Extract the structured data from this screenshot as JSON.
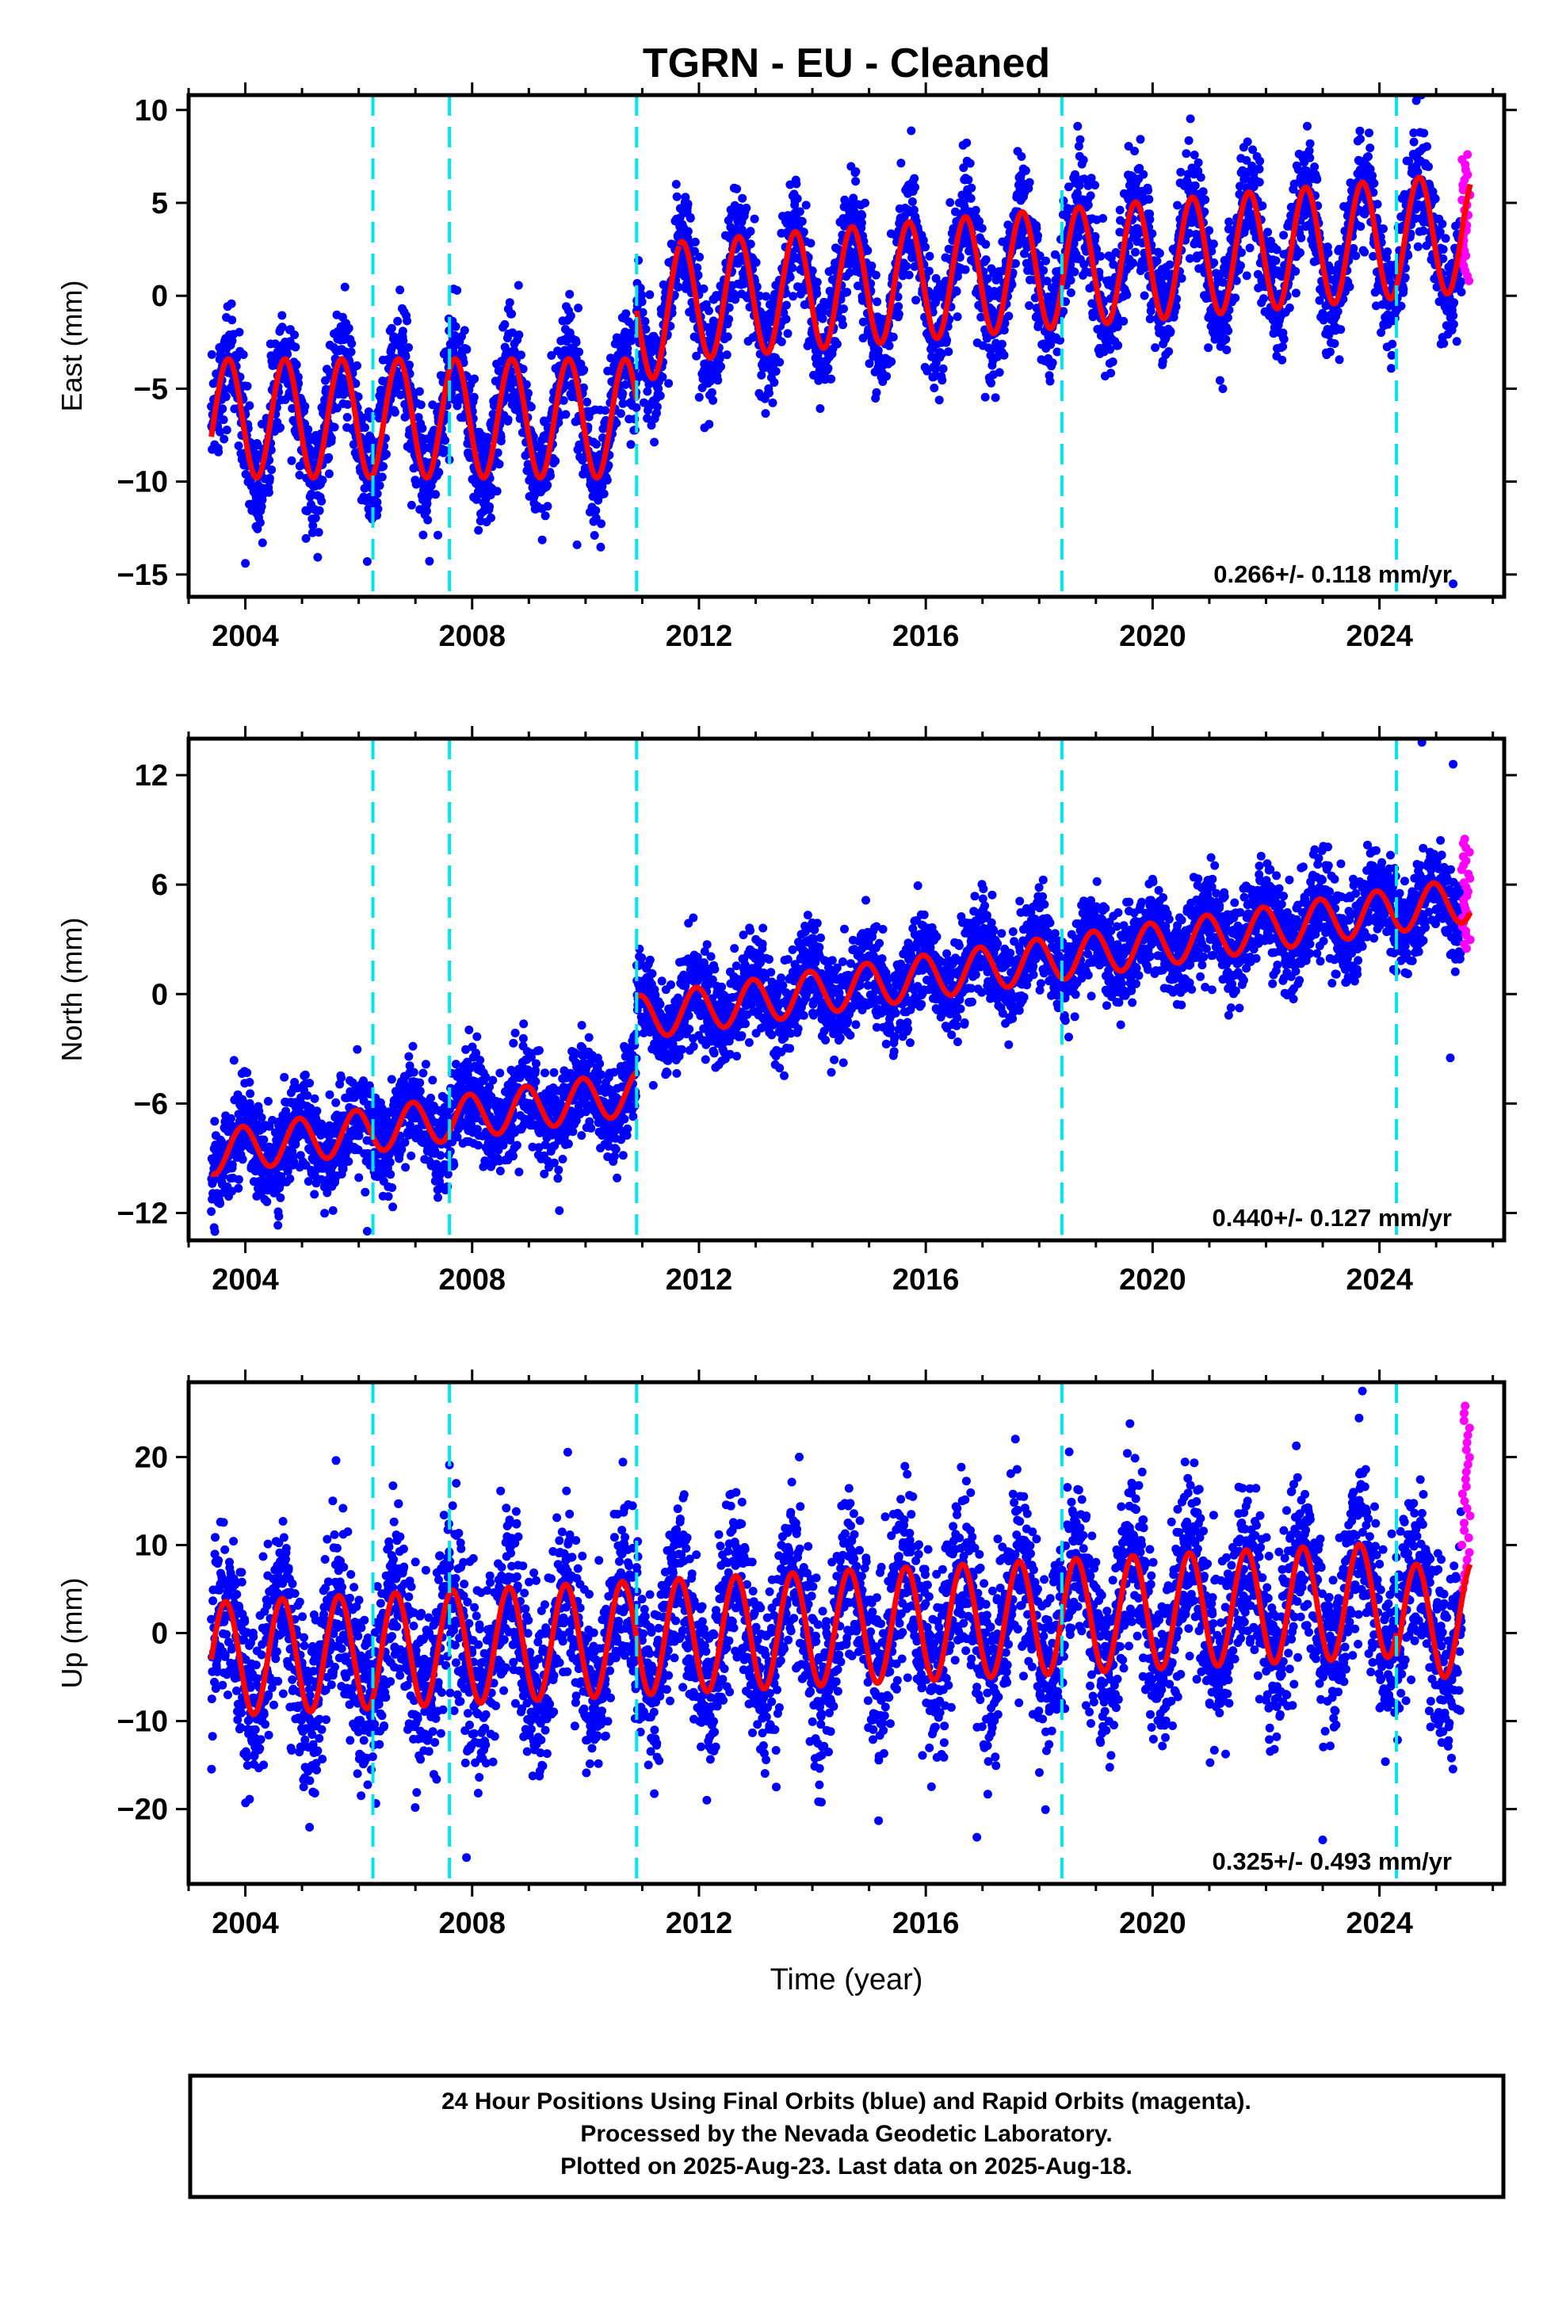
{
  "colors": {
    "final_points": "#0000ff",
    "rapid_points": "#ff00ff",
    "model": "#ff0000",
    "breaks": "#00e5ee",
    "frame": "#000000"
  },
  "chart_data": [
    {
      "type": "scatter",
      "title": "TGRN  - EU - Cleaned",
      "ylabel": "East (mm)",
      "xlabel": "",
      "xlim": [
        2003.0,
        2026.2
      ],
      "ylim": [
        -16.2,
        10.8
      ],
      "yticks": [
        10,
        5,
        0,
        -5,
        -10,
        -15
      ],
      "xticks": [
        2004,
        2008,
        2012,
        2016,
        2020,
        2024
      ],
      "rate_text": "0.266+/- 0.118 mm/yr",
      "breaks": [
        2006.25,
        2007.6,
        2010.9,
        2018.4,
        2024.3
      ],
      "model": {
        "amp": 3.2,
        "phase": 0.55,
        "segments": [
          [
            2003.4,
            2010.9,
            -6.6,
            0.0
          ],
          [
            2010.9,
            2011.65,
            -1.8,
            1.9
          ],
          [
            2011.65,
            2025.6,
            -0.3,
            0.266
          ]
        ]
      },
      "scatter_sigma": 1.5,
      "rapid": {
        "x0": 2025.45,
        "x1": 2025.6,
        "ymin": 0.8,
        "ymax": 7.6
      },
      "outliers": [
        [
          2004.0,
          -14.4
        ],
        [
          2006.15,
          -14.3
        ],
        [
          2009.85,
          -13.4
        ],
        [
          2011.6,
          6.0
        ],
        [
          2024.65,
          10.5
        ],
        [
          2025.3,
          -15.5
        ]
      ]
    },
    {
      "type": "scatter",
      "title": "",
      "ylabel": "North (mm)",
      "xlabel": "",
      "xlim": [
        2003.0,
        2026.2
      ],
      "ylim": [
        -13.5,
        14.0
      ],
      "yticks": [
        12,
        6,
        0,
        -6,
        -12
      ],
      "xticks": [
        2004,
        2008,
        2012,
        2016,
        2020,
        2024
      ],
      "rate_text": "0.440+/- 0.127 mm/yr",
      "breaks": [
        2006.25,
        2007.6,
        2010.9,
        2018.4,
        2024.3
      ],
      "model": {
        "amp": 1.2,
        "phase": 0.3,
        "segments": [
          [
            2003.4,
            2010.9,
            -8.7,
            0.44
          ],
          [
            2010.9,
            2025.6,
            -1.3,
            0.44
          ]
        ]
      },
      "scatter_sigma": 1.3,
      "rapid": {
        "x0": 2025.45,
        "x1": 2025.6,
        "ymin": 2.5,
        "ymax": 8.5
      },
      "outliers": [
        [
          2003.45,
          -12.8
        ],
        [
          2006.15,
          -13.0
        ],
        [
          2024.75,
          13.8
        ],
        [
          2025.3,
          12.6
        ],
        [
          2025.25,
          -3.5
        ]
      ]
    },
    {
      "type": "scatter",
      "title": "",
      "ylabel": "Up (mm)",
      "xlabel": "Time (year)",
      "xlim": [
        2003.0,
        2026.2
      ],
      "ylim": [
        -28.5,
        28.5
      ],
      "yticks": [
        20,
        10,
        0,
        -10,
        -20
      ],
      "xticks": [
        2004,
        2008,
        2012,
        2016,
        2020,
        2024
      ],
      "rate_text": "0.325+/- 0.493 mm/yr",
      "breaks": [
        2006.25,
        2007.6,
        2010.9,
        2018.4,
        2024.3
      ],
      "model": {
        "amp": 6.5,
        "phase": 0.6,
        "segments": [
          [
            2003.4,
            2024.3,
            -3.0,
            0.325
          ],
          [
            2024.3,
            2025.6,
            1.2,
            0.325
          ]
        ]
      },
      "scatter_sigma": 5.0,
      "rapid": {
        "x0": 2025.45,
        "x1": 2025.6,
        "ymin": 5.0,
        "ymax": 25.8
      },
      "outliers": [
        [
          2005.6,
          19.6
        ],
        [
          2007.6,
          19.1
        ],
        [
          2007.9,
          -25.5
        ],
        [
          2019.6,
          23.8
        ],
        [
          2023.7,
          27.5
        ],
        [
          2023.0,
          -23.5
        ],
        [
          2016.9,
          -23.2
        ]
      ]
    }
  ],
  "footer": {
    "line1": "24 Hour Positions Using Final Orbits (blue) and Rapid Orbits (magenta).",
    "line2": "Processed by the Nevada Geodetic Laboratory.",
    "line3": "Plotted on 2025-Aug-23. Last data on 2025-Aug-18."
  }
}
